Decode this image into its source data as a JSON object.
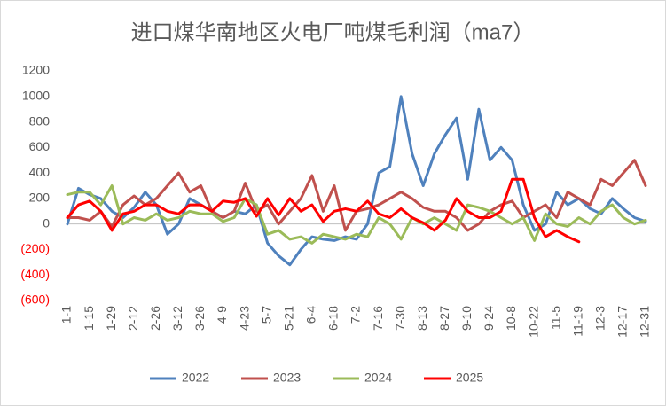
{
  "chart_data": {
    "type": "line",
    "title": "进口煤华南地区火电厂吨煤毛利润（ma7）",
    "categories": [
      "1-1",
      null,
      "1-15",
      null,
      "1-29",
      null,
      "2-12",
      null,
      "2-26",
      null,
      "3-12",
      null,
      "3-26",
      null,
      "4-9",
      null,
      "4-23",
      null,
      "5-7",
      null,
      "5-21",
      null,
      "6-4",
      null,
      "6-18",
      null,
      "7-2",
      null,
      "7-16",
      null,
      "7-30",
      null,
      "8-13",
      null,
      "8-27",
      null,
      "9-10",
      null,
      "9-24",
      null,
      "10-8",
      null,
      "10-22",
      null,
      "11-5",
      null,
      "11-19",
      null,
      "12-3",
      null,
      "12-17",
      null,
      "12-31"
    ],
    "series": [
      {
        "name": "2022",
        "color": "#4f81bd",
        "values": [
          0,
          280,
          230,
          200,
          100,
          50,
          130,
          250,
          150,
          -80,
          0,
          200,
          150,
          100,
          50,
          100,
          80,
          150,
          -150,
          -250,
          -320,
          -200,
          -100,
          -120,
          -130,
          -100,
          -120,
          0,
          400,
          450,
          1000,
          550,
          300,
          550,
          700,
          830,
          350,
          900,
          500,
          600,
          500,
          150,
          -50,
          0,
          250,
          150,
          200,
          120,
          80,
          200,
          120,
          50,
          20
        ]
      },
      {
        "name": "2023",
        "color": "#c0504d",
        "values": [
          50,
          50,
          30,
          100,
          -20,
          150,
          220,
          150,
          200,
          300,
          400,
          250,
          300,
          100,
          50,
          100,
          320,
          100,
          150,
          0,
          100,
          200,
          380,
          100,
          300,
          -50,
          100,
          120,
          150,
          200,
          250,
          200,
          130,
          100,
          100,
          50,
          -50,
          0,
          100,
          150,
          180,
          50,
          100,
          150,
          50,
          250,
          200,
          150,
          350,
          300,
          400,
          500,
          300
        ]
      },
      {
        "name": "2024",
        "color": "#9bbb59",
        "values": [
          230,
          250,
          250,
          150,
          300,
          0,
          50,
          30,
          80,
          30,
          50,
          100,
          80,
          80,
          20,
          50,
          200,
          150,
          -80,
          -50,
          -120,
          -100,
          -150,
          -80,
          -100,
          -120,
          -80,
          -100,
          50,
          0,
          -120,
          50,
          0,
          50,
          0,
          -50,
          150,
          130,
          100,
          50,
          0,
          50,
          -130,
          80,
          0,
          -20,
          50,
          0,
          100,
          150,
          50,
          0,
          30
        ]
      },
      {
        "name": "2025",
        "color": "#ff0000",
        "values": [
          50,
          150,
          180,
          100,
          -50,
          80,
          100,
          150,
          150,
          100,
          80,
          150,
          150,
          100,
          180,
          170,
          200,
          60,
          200,
          70,
          200,
          100,
          150,
          20,
          100,
          120,
          100,
          180,
          80,
          50,
          120,
          50,
          10,
          -50,
          30,
          200,
          100,
          50,
          50,
          100,
          350,
          350,
          50,
          -100,
          -50,
          -100,
          -140,
          null,
          null,
          null,
          null,
          null,
          null
        ]
      }
    ],
    "ylim": [
      -600,
      1200
    ],
    "yticks": [
      {
        "value": -600,
        "label": "(600)"
      },
      {
        "value": -400,
        "label": "(400)"
      },
      {
        "value": -200,
        "label": "(200)"
      },
      0,
      200,
      400,
      600,
      800,
      1000,
      1200
    ],
    "negative_tick_color": "#ff0000",
    "grid": false,
    "legend": "bottom"
  }
}
